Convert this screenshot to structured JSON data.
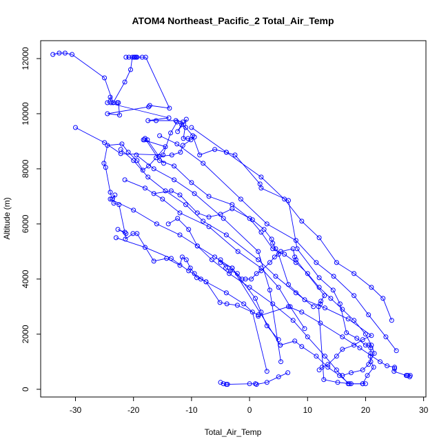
{
  "chart_data": {
    "type": "line",
    "title": "ATOM4 Northeast_Pacific_2 Total_Air_Temp",
    "xlabel": "Total_Air_Temp",
    "ylabel": "Altitude (m)",
    "xlim": [
      -36,
      30.4
    ],
    "ylim": [
      -280,
      12650
    ],
    "xticks": [
      -30,
      -20,
      -10,
      0,
      10,
      20,
      30
    ],
    "yticks": [
      0,
      2000,
      4000,
      6000,
      8000,
      10000,
      12000
    ],
    "grid": false,
    "legend": "none",
    "series_color": "#0000ff",
    "marker": "open-circle",
    "series": [
      {
        "x": [
          -33.9,
          -32.8,
          -31.8,
          -30.6,
          -25,
          -23.5,
          -21.5,
          -20.5,
          -20.2,
          -19.6,
          -18.5,
          -21.3,
          -20.8,
          -19.9,
          -19.4,
          -19.8,
          -19.6,
          -17.9,
          -13.8,
          -17.2,
          -17.4,
          -24.5,
          -22.4,
          -22.6,
          -22.8,
          -23.9,
          -24,
          -24.5,
          -13.9,
          -17.5,
          -16.1,
          -12.7,
          -11.5,
          -12.4,
          -10.9,
          -11.4,
          -10.6,
          -9.5,
          -10.1,
          -11.5,
          -11.9,
          -13.4,
          -15.6,
          -14.8,
          -17.6,
          -18.1,
          -18.3,
          -14.5,
          -16.1,
          -17.4,
          -18.4,
          -19.4,
          -20.9,
          -22,
          -24.5,
          -25.1,
          -24.8,
          -24,
          -23.7,
          -23.2,
          -23.4,
          -22.5,
          -21.5,
          -22.7,
          -21.3,
          -21.4,
          -20.1,
          -19.4,
          -16.5,
          -14.3,
          -12,
          -11.6,
          -10.9,
          -10.2,
          -9.5,
          -9.1,
          -8.4,
          -7.5,
          -5.1,
          -3.9,
          -2.1,
          1.5,
          1.5,
          6.7,
          9,
          12.2,
          16,
          19,
          22.5,
          23.7,
          25,
          25,
          24.9,
          27,
          27.1,
          27.3,
          27.7,
          27.6
        ],
        "y": [
          12150,
          12200,
          12200,
          12150,
          11300,
          10400,
          11150,
          11600,
          12050,
          12050,
          12050,
          12050,
          12050,
          12050,
          12050,
          12050,
          12050,
          12050,
          10200,
          10300,
          10250,
          10000,
          9950,
          10400,
          10400,
          10400,
          10600,
          10400,
          9850,
          9750,
          9750,
          9750,
          9700,
          9350,
          9800,
          9100,
          9100,
          9150,
          9050,
          8850,
          8600,
          8500,
          8450,
          8200,
          9050,
          9050,
          9050,
          8800,
          8400,
          8100,
          7950,
          8300,
          8600,
          8900,
          8850,
          8200,
          8050,
          7150,
          6900,
          7050,
          6750,
          6700,
          5700,
          5800,
          5650,
          5450,
          5650,
          5650,
          4650,
          4750,
          4500,
          4800,
          4700,
          4400,
          4200,
          4050,
          4000,
          3900,
          3150,
          3100,
          3050,
          2700,
          2650,
          3000,
          2800,
          2400,
          1900,
          1500,
          1000,
          850,
          800,
          750,
          650,
          500,
          500,
          500,
          500,
          450
        ]
      },
      {
        "x": [
          -30,
          -25,
          -22.2,
          -14.9,
          -13.6,
          -12.5,
          -11.7,
          -11,
          -9.8,
          -8.6,
          -6,
          -4,
          -2.5,
          1.8,
          2,
          6.7,
          8.2,
          12,
          14.4,
          15.6,
          16.7,
          18.5,
          20,
          20.5,
          20.9,
          20.9,
          20.8,
          20.9,
          21.4,
          20.3,
          19.5,
          17.5,
          15.2,
          12.8,
          11.9,
          12.2,
          12.3,
          12.9,
          8,
          7.8,
          7.5,
          5.4,
          4.3,
          3.5,
          2,
          1.2,
          0.3,
          -0.7,
          -1.3,
          -2.1,
          -3.3,
          -4.1,
          -5,
          -5,
          -3,
          5.3
        ],
        "y": [
          9500,
          8950,
          8550,
          8500,
          9300,
          9700,
          9600,
          9500,
          9200,
          8500,
          8700,
          8600,
          8500,
          7450,
          7300,
          6850,
          5100,
          4050,
          3600,
          3100,
          2050,
          1850,
          1600,
          1600,
          1500,
          1300,
          1200,
          1000,
          800,
          500,
          200,
          200,
          250,
          350,
          3000,
          3100,
          3200,
          3400,
          4700,
          4800,
          5100,
          5000,
          4800,
          4600,
          4300,
          4200,
          4000,
          4000,
          4000,
          4200,
          4300,
          4400,
          4700,
          4600,
          4400,
          1600
        ]
      },
      {
        "x": [
          -16.5,
          -13.5,
          -12,
          -9,
          -7,
          -5,
          -3,
          0.5,
          2.5,
          3.8,
          4,
          4.5,
          5,
          6.7,
          9.5,
          13,
          17,
          21,
          19.5,
          18,
          16,
          15,
          13.5,
          12.5,
          12
        ],
        "y": [
          7100,
          7200,
          7050,
          6400,
          6250,
          6350,
          6550,
          6150,
          5800,
          5450,
          5300,
          5100,
          4900,
          3800,
          3250,
          2950,
          2550,
          1950,
          1800,
          1600,
          1450,
          1200,
          900,
          800,
          700
        ]
      },
      {
        "x": [
          -18,
          -15.5,
          -13,
          -10,
          -7,
          -3,
          0,
          2,
          4,
          6,
          8,
          10,
          12,
          14,
          16,
          18,
          20,
          21,
          21.5,
          20.5,
          19.5,
          17.5,
          16
        ],
        "y": [
          9100,
          8300,
          8100,
          7500,
          7000,
          6700,
          6200,
          5700,
          5100,
          4900,
          4600,
          4200,
          3700,
          3300,
          2900,
          2500,
          2000,
          1600,
          1300,
          900,
          700,
          600,
          500
        ]
      },
      {
        "x": [
          -14,
          -12.4,
          -10.5,
          -9,
          -6.5,
          -3.5,
          0,
          4,
          7.5,
          10,
          13,
          15,
          17
        ],
        "y": [
          6000,
          6200,
          5800,
          5200,
          4700,
          4200,
          3700,
          3100,
          2500,
          1900,
          1200,
          700,
          200
        ]
      },
      {
        "x": [
          -24,
          -20,
          -16,
          -12,
          -9,
          -6,
          -3,
          1,
          2,
          3,
          5
        ],
        "y": [
          6900,
          6500,
          6000,
          5600,
          5200,
          4800,
          4400,
          3300,
          2800,
          2300,
          1800
        ]
      },
      {
        "x": [
          -23,
          -18,
          -13.5,
          -10.5,
          -7.5,
          -4,
          -1,
          0.5,
          3
        ],
        "y": [
          5500,
          5150,
          4750,
          4300,
          3900,
          3500,
          3100,
          2800,
          650
        ]
      },
      {
        "x": [
          -5,
          -4.5,
          -4,
          -3.8,
          0,
          1,
          1.2,
          3,
          5,
          6.6
        ],
        "y": [
          250,
          200,
          180,
          180,
          200,
          200,
          180,
          250,
          450,
          600
        ]
      },
      {
        "x": [
          5.3,
          7.8,
          9,
          11.5,
          13.5,
          15.5,
          17.2,
          19.5,
          20
        ],
        "y": [
          1600,
          1750,
          1550,
          1200,
          800,
          500,
          200,
          200,
          200
        ]
      },
      {
        "x": [
          -22.2,
          -20,
          -17.5,
          -14.5,
          -11,
          -8,
          -4,
          1.5,
          4.5,
          8,
          11
        ],
        "y": [
          8700,
          8300,
          7700,
          7200,
          6700,
          6100,
          5600,
          4700,
          4100,
          3500,
          3000
        ]
      },
      {
        "x": [
          -21.5,
          -18,
          -15,
          -12,
          -7,
          -2,
          2,
          5,
          7,
          9.5
        ],
        "y": [
          7600,
          7300,
          6900,
          6400,
          5900,
          5000,
          4400,
          3700,
          3000,
          2200
        ]
      },
      {
        "x": [
          -19.5,
          -16.5,
          -13,
          -9.5,
          -4.5,
          1.5,
          3.5,
          5.4
        ],
        "y": [
          8500,
          8000,
          7600,
          7100,
          6200,
          5000,
          3600,
          1000
        ]
      },
      {
        "x": [
          -15.5,
          -12.5,
          -8,
          -1.5,
          3,
          8,
          11.5,
          14.5,
          18,
          20.5,
          23.5,
          25.3
        ],
        "y": [
          9200,
          8900,
          8200,
          6900,
          6000,
          5400,
          4600,
          4100,
          3400,
          2700,
          1900,
          1400
        ]
      },
      {
        "x": [
          -10,
          -4,
          2,
          6,
          9,
          12,
          15,
          18,
          21,
          23,
          24.5
        ],
        "y": [
          9500,
          8600,
          7700,
          6900,
          6100,
          5500,
          4600,
          4200,
          3700,
          3300,
          2500
        ]
      }
    ]
  }
}
